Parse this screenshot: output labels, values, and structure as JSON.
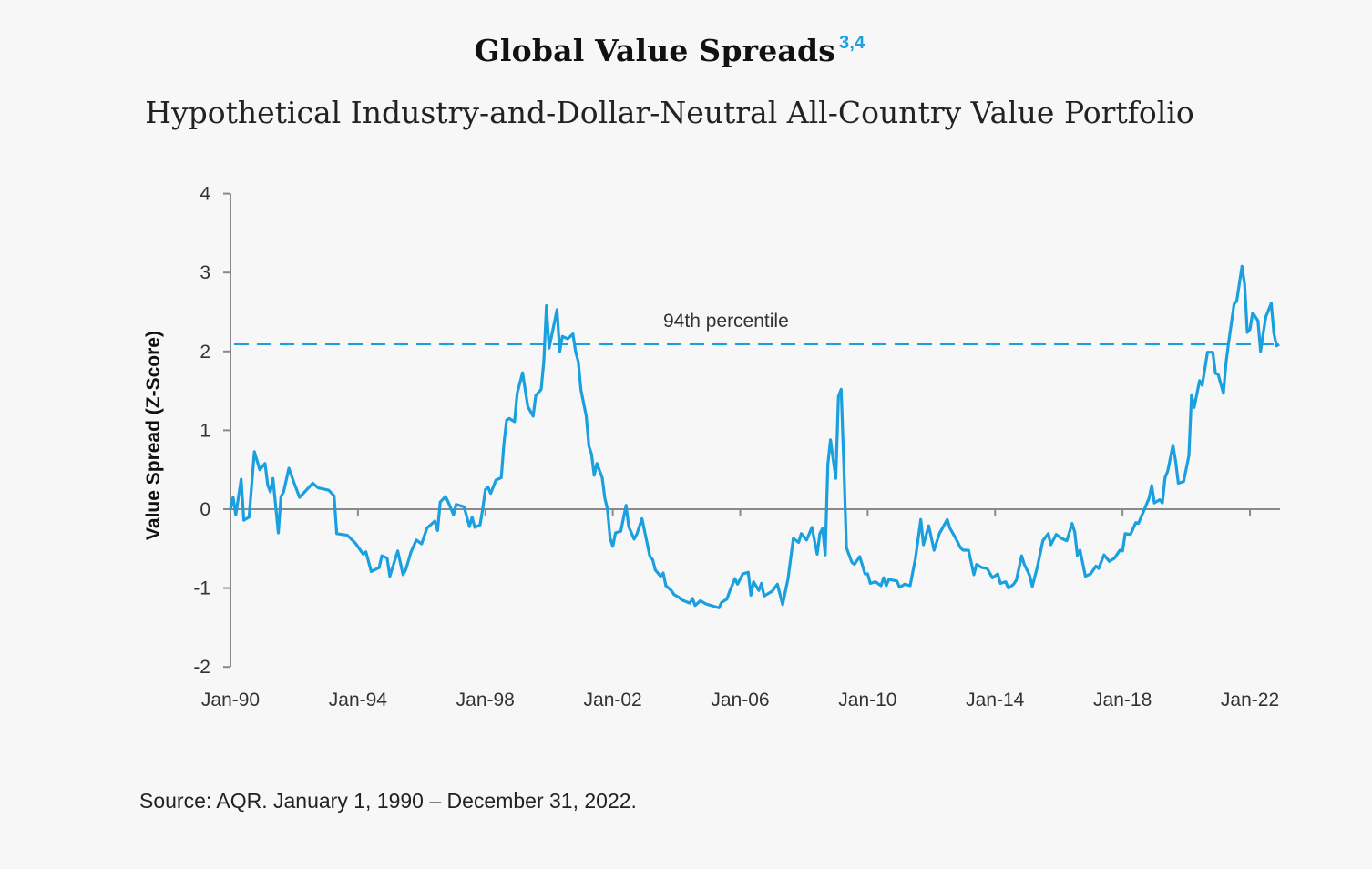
{
  "chart_data": {
    "type": "line",
    "title": "Global Value Spreads",
    "title_footnotes": "3,4",
    "subtitle": "Hypothetical Industry-and-Dollar-Neutral All-Country Value Portfolio",
    "xlabel": "",
    "ylabel": "Value Spread (Z-Score)",
    "ylim": [
      -2,
      4
    ],
    "xlim": [
      "1990-01",
      "2022-12"
    ],
    "yticks": [
      "4",
      "3",
      "2",
      "1",
      "0",
      "-1",
      "-2"
    ],
    "xticks": [
      "Jan-90",
      "Jan-94",
      "Jan-98",
      "Jan-02",
      "Jan-06",
      "Jan-10",
      "Jan-14",
      "Jan-18",
      "Jan-22"
    ],
    "grid": false,
    "line_color": "#1a9fdf",
    "reference_line": {
      "label": "94th percentile",
      "value": 2.09,
      "style": "dashed",
      "color": "#1a9fdf"
    },
    "series": [
      {
        "points": [
          [
            "1990-01",
            0.0
          ],
          [
            "1990-02",
            0.15
          ],
          [
            "1990-03",
            -0.07
          ],
          [
            "1990-05",
            0.38
          ],
          [
            "1990-06",
            -0.14
          ],
          [
            "1990-08",
            -0.1
          ],
          [
            "1990-10",
            0.73
          ],
          [
            "1990-12",
            0.5
          ],
          [
            "1991-02",
            0.58
          ],
          [
            "1991-03",
            0.31
          ],
          [
            "1991-04",
            0.22
          ],
          [
            "1991-05",
            0.39
          ],
          [
            "1991-07",
            -0.3
          ],
          [
            "1991-08",
            0.16
          ],
          [
            "1991-09",
            0.22
          ],
          [
            "1991-11",
            0.52
          ],
          [
            "1992-01",
            0.33
          ],
          [
            "1992-03",
            0.15
          ],
          [
            "1992-05",
            0.22
          ],
          [
            "1992-08",
            0.33
          ],
          [
            "1992-10",
            0.27
          ],
          [
            "1993-02",
            0.24
          ],
          [
            "1993-04",
            0.17
          ],
          [
            "1993-05",
            -0.31
          ],
          [
            "1993-09",
            -0.33
          ],
          [
            "1993-12",
            -0.43
          ],
          [
            "1994-03",
            -0.57
          ],
          [
            "1994-04",
            -0.54
          ],
          [
            "1994-06",
            -0.79
          ],
          [
            "1994-09",
            -0.74
          ],
          [
            "1994-10",
            -0.59
          ],
          [
            "1994-12",
            -0.62
          ],
          [
            "1995-01",
            -0.85
          ],
          [
            "1995-04",
            -0.53
          ],
          [
            "1995-06",
            -0.83
          ],
          [
            "1995-07",
            -0.77
          ],
          [
            "1995-09",
            -0.54
          ],
          [
            "1995-11",
            -0.39
          ],
          [
            "1996-01",
            -0.44
          ],
          [
            "1996-03",
            -0.24
          ],
          [
            "1996-06",
            -0.15
          ],
          [
            "1996-07",
            -0.27
          ],
          [
            "1996-08",
            0.09
          ],
          [
            "1996-10",
            0.16
          ],
          [
            "1996-11",
            0.09
          ],
          [
            "1997-01",
            -0.07
          ],
          [
            "1997-02",
            0.06
          ],
          [
            "1997-05",
            0.03
          ],
          [
            "1997-07",
            -0.22
          ],
          [
            "1997-08",
            -0.1
          ],
          [
            "1997-09",
            -0.23
          ],
          [
            "1997-11",
            -0.2
          ],
          [
            "1997-12",
            0.0
          ],
          [
            "1998-01",
            0.25
          ],
          [
            "1998-02",
            0.28
          ],
          [
            "1998-03",
            0.2
          ],
          [
            "1998-05",
            0.37
          ],
          [
            "1998-07",
            0.4
          ],
          [
            "1998-08",
            0.84
          ],
          [
            "1998-09",
            1.13
          ],
          [
            "1998-10",
            1.15
          ],
          [
            "1998-12",
            1.11
          ],
          [
            "1999-01",
            1.47
          ],
          [
            "1999-03",
            1.73
          ],
          [
            "1999-05",
            1.3
          ],
          [
            "1999-07",
            1.18
          ],
          [
            "1999-08",
            1.44
          ],
          [
            "1999-10",
            1.52
          ],
          [
            "1999-11",
            1.87
          ],
          [
            "1999-12",
            2.58
          ],
          [
            "2000-01",
            2.04
          ],
          [
            "2000-04",
            2.53
          ],
          [
            "2000-05",
            2.0
          ],
          [
            "2000-06",
            2.19
          ],
          [
            "2000-08",
            2.16
          ],
          [
            "2000-10",
            2.22
          ],
          [
            "2000-11",
            2.0
          ],
          [
            "2000-12",
            1.87
          ],
          [
            "2001-01",
            1.51
          ],
          [
            "2001-03",
            1.18
          ],
          [
            "2001-04",
            0.8
          ],
          [
            "2001-05",
            0.7
          ],
          [
            "2001-06",
            0.43
          ],
          [
            "2001-07",
            0.58
          ],
          [
            "2001-09",
            0.4
          ],
          [
            "2001-10",
            0.14
          ],
          [
            "2001-11",
            0.0
          ],
          [
            "2001-12",
            -0.37
          ],
          [
            "2002-01",
            -0.47
          ],
          [
            "2002-02",
            -0.3
          ],
          [
            "2002-04",
            -0.28
          ],
          [
            "2002-06",
            0.05
          ],
          [
            "2002-07",
            -0.22
          ],
          [
            "2002-09",
            -0.38
          ],
          [
            "2002-10",
            -0.32
          ],
          [
            "2002-12",
            -0.12
          ],
          [
            "2003-03",
            -0.6
          ],
          [
            "2003-04",
            -0.64
          ],
          [
            "2003-05",
            -0.77
          ],
          [
            "2003-07",
            -0.85
          ],
          [
            "2003-08",
            -0.81
          ],
          [
            "2003-09",
            -0.97
          ],
          [
            "2003-11",
            -1.03
          ],
          [
            "2003-12",
            -1.08
          ],
          [
            "2004-02",
            -1.12
          ],
          [
            "2004-03",
            -1.15
          ],
          [
            "2004-06",
            -1.19
          ],
          [
            "2004-07",
            -1.13
          ],
          [
            "2004-08",
            -1.22
          ],
          [
            "2004-10",
            -1.16
          ],
          [
            "2004-12",
            -1.2
          ],
          [
            "2005-02",
            -1.22
          ],
          [
            "2005-05",
            -1.25
          ],
          [
            "2005-06",
            -1.18
          ],
          [
            "2005-08",
            -1.14
          ],
          [
            "2005-09",
            -1.04
          ],
          [
            "2005-11",
            -0.88
          ],
          [
            "2005-12",
            -0.95
          ],
          [
            "2006-02",
            -0.82
          ],
          [
            "2006-04",
            -0.8
          ],
          [
            "2006-05",
            -1.09
          ],
          [
            "2006-06",
            -0.92
          ],
          [
            "2006-08",
            -1.03
          ],
          [
            "2006-09",
            -0.94
          ],
          [
            "2006-10",
            -1.1
          ],
          [
            "2007-01",
            -1.04
          ],
          [
            "2007-03",
            -0.95
          ],
          [
            "2007-05",
            -1.21
          ],
          [
            "2007-06",
            -1.04
          ],
          [
            "2007-07",
            -0.88
          ],
          [
            "2007-09",
            -0.37
          ],
          [
            "2007-11",
            -0.42
          ],
          [
            "2007-12",
            -0.31
          ],
          [
            "2008-02",
            -0.39
          ],
          [
            "2008-04",
            -0.23
          ],
          [
            "2008-06",
            -0.57
          ],
          [
            "2008-07",
            -0.31
          ],
          [
            "2008-08",
            -0.24
          ],
          [
            "2008-09",
            -0.58
          ],
          [
            "2008-10",
            0.57
          ],
          [
            "2008-11",
            0.88
          ],
          [
            "2009-01",
            0.39
          ],
          [
            "2009-02",
            1.43
          ],
          [
            "2009-03",
            1.52
          ],
          [
            "2009-04",
            0.57
          ],
          [
            "2009-05",
            -0.49
          ],
          [
            "2009-07",
            -0.67
          ],
          [
            "2009-08",
            -0.7
          ],
          [
            "2009-10",
            -0.6
          ],
          [
            "2009-12",
            -0.82
          ],
          [
            "2010-01",
            -0.82
          ],
          [
            "2010-02",
            -0.94
          ],
          [
            "2010-04",
            -0.92
          ],
          [
            "2010-06",
            -0.97
          ],
          [
            "2010-07",
            -0.87
          ],
          [
            "2010-08",
            -0.97
          ],
          [
            "2010-09",
            -0.89
          ],
          [
            "2010-12",
            -0.91
          ],
          [
            "2011-01",
            -0.99
          ],
          [
            "2011-03",
            -0.95
          ],
          [
            "2011-05",
            -0.97
          ],
          [
            "2011-07",
            -0.62
          ],
          [
            "2011-09",
            -0.13
          ],
          [
            "2011-10",
            -0.45
          ],
          [
            "2011-12",
            -0.21
          ],
          [
            "2012-02",
            -0.52
          ],
          [
            "2012-04",
            -0.31
          ],
          [
            "2012-07",
            -0.13
          ],
          [
            "2012-08",
            -0.24
          ],
          [
            "2012-10",
            -0.36
          ],
          [
            "2012-12",
            -0.49
          ],
          [
            "2013-01",
            -0.52
          ],
          [
            "2013-03",
            -0.52
          ],
          [
            "2013-05",
            -0.83
          ],
          [
            "2013-06",
            -0.7
          ],
          [
            "2013-08",
            -0.74
          ],
          [
            "2013-10",
            -0.75
          ],
          [
            "2013-12",
            -0.87
          ],
          [
            "2014-02",
            -0.82
          ],
          [
            "2014-03",
            -0.94
          ],
          [
            "2014-05",
            -0.92
          ],
          [
            "2014-06",
            -1.0
          ],
          [
            "2014-08",
            -0.95
          ],
          [
            "2014-09",
            -0.9
          ],
          [
            "2014-11",
            -0.59
          ],
          [
            "2014-12",
            -0.7
          ],
          [
            "2015-02",
            -0.84
          ],
          [
            "2015-03",
            -0.98
          ],
          [
            "2015-05",
            -0.72
          ],
          [
            "2015-07",
            -0.4
          ],
          [
            "2015-09",
            -0.31
          ],
          [
            "2015-10",
            -0.45
          ],
          [
            "2015-12",
            -0.32
          ],
          [
            "2016-02",
            -0.37
          ],
          [
            "2016-04",
            -0.4
          ],
          [
            "2016-06",
            -0.18
          ],
          [
            "2016-07",
            -0.29
          ],
          [
            "2016-08",
            -0.59
          ],
          [
            "2016-09",
            -0.52
          ],
          [
            "2016-11",
            -0.85
          ],
          [
            "2017-01",
            -0.82
          ],
          [
            "2017-03",
            -0.72
          ],
          [
            "2017-04",
            -0.75
          ],
          [
            "2017-06",
            -0.58
          ],
          [
            "2017-08",
            -0.66
          ],
          [
            "2017-10",
            -0.62
          ],
          [
            "2017-12",
            -0.52
          ],
          [
            "2018-01",
            -0.53
          ],
          [
            "2018-02",
            -0.31
          ],
          [
            "2018-04",
            -0.32
          ],
          [
            "2018-06",
            -0.17
          ],
          [
            "2018-07",
            -0.18
          ],
          [
            "2018-09",
            -0.02
          ],
          [
            "2018-11",
            0.14
          ],
          [
            "2018-12",
            0.3
          ],
          [
            "2019-01",
            0.08
          ],
          [
            "2019-03",
            0.12
          ],
          [
            "2019-04",
            0.08
          ],
          [
            "2019-05",
            0.4
          ],
          [
            "2019-06",
            0.48
          ],
          [
            "2019-08",
            0.81
          ],
          [
            "2019-09",
            0.61
          ],
          [
            "2019-10",
            0.33
          ],
          [
            "2019-12",
            0.35
          ],
          [
            "2020-02",
            0.68
          ],
          [
            "2020-03",
            1.45
          ],
          [
            "2020-04",
            1.29
          ],
          [
            "2020-06",
            1.63
          ],
          [
            "2020-07",
            1.57
          ],
          [
            "2020-09",
            1.99
          ],
          [
            "2020-11",
            1.99
          ],
          [
            "2020-12",
            1.72
          ],
          [
            "2021-01",
            1.71
          ],
          [
            "2021-03",
            1.47
          ],
          [
            "2021-04",
            1.86
          ],
          [
            "2021-05",
            2.12
          ],
          [
            "2021-07",
            2.6
          ],
          [
            "2021-08",
            2.64
          ],
          [
            "2021-10",
            3.08
          ],
          [
            "2021-11",
            2.85
          ],
          [
            "2021-12",
            2.24
          ],
          [
            "2022-01",
            2.28
          ],
          [
            "2022-02",
            2.49
          ],
          [
            "2022-04",
            2.39
          ],
          [
            "2022-05",
            2.0
          ],
          [
            "2022-06",
            2.23
          ],
          [
            "2022-07",
            2.44
          ],
          [
            "2022-09",
            2.61
          ],
          [
            "2022-10",
            2.23
          ],
          [
            "2022-11",
            2.07
          ],
          [
            "2022-12",
            2.09
          ]
        ]
      }
    ]
  },
  "source": "Source: AQR. January 1, 1990 – December 31, 2022."
}
